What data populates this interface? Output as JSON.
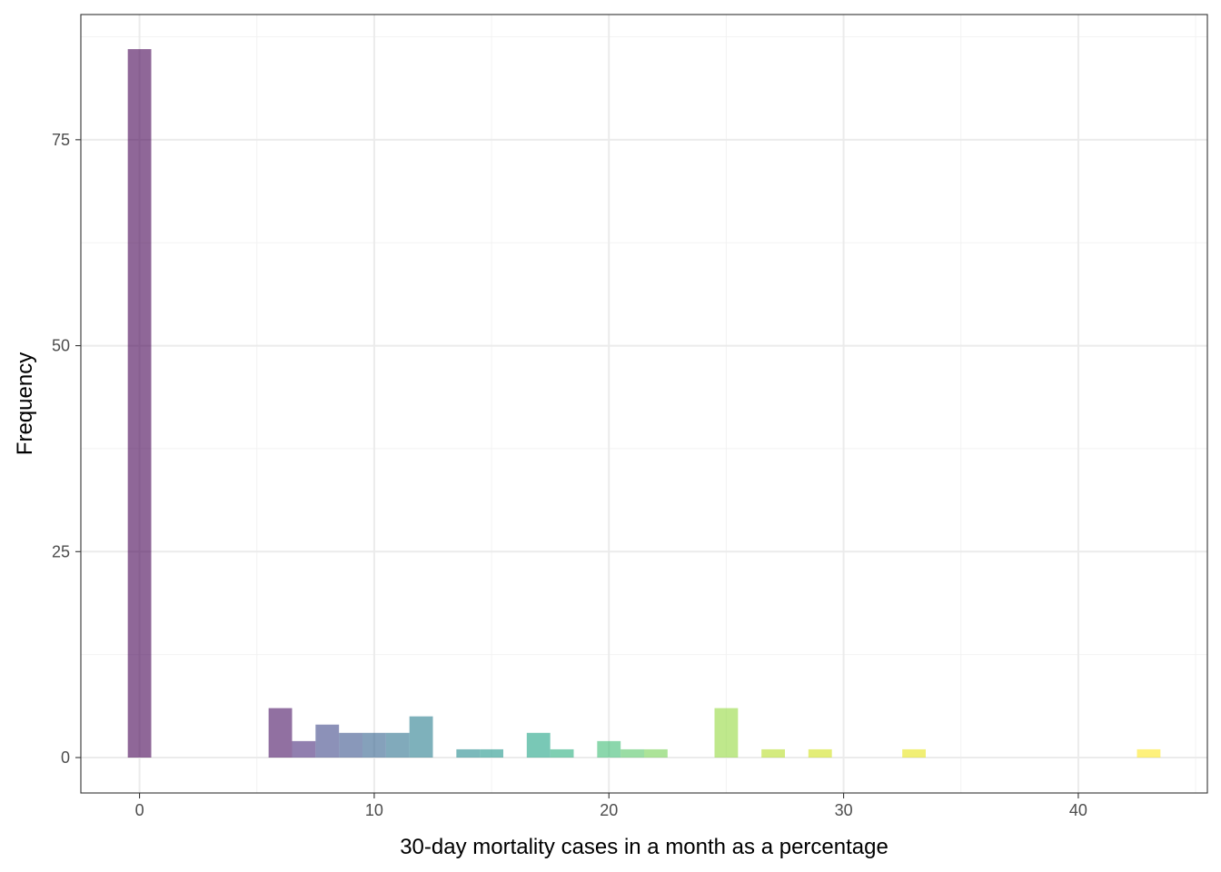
{
  "chart_data": {
    "type": "bar",
    "xlabel": "30-day mortality cases in a month as a percentage",
    "ylabel": "Frequency",
    "xlim": [
      -2.5,
      45.5
    ],
    "ylim": [
      -4.3,
      90.2
    ],
    "x_ticks": [
      0,
      10,
      20,
      30,
      40
    ],
    "y_ticks": [
      0,
      25,
      50,
      75
    ],
    "bin_width": 1,
    "grid": true,
    "legend": "none",
    "color_scale": "viridis",
    "bins": [
      {
        "x": 0,
        "count": 86,
        "color": "#440154"
      },
      {
        "x": 6,
        "count": 6,
        "color": "#471063"
      },
      {
        "x": 7,
        "count": 2,
        "color": "#472a7a"
      },
      {
        "x": 8,
        "count": 4,
        "color": "#3f4788"
      },
      {
        "x": 9,
        "count": 3,
        "color": "#3a548c"
      },
      {
        "x": 10,
        "count": 3,
        "color": "#33638d"
      },
      {
        "x": 11,
        "count": 3,
        "color": "#2d718e"
      },
      {
        "x": 12,
        "count": 5,
        "color": "#287d8e"
      },
      {
        "x": 14,
        "count": 1,
        "color": "#238a8d"
      },
      {
        "x": 15,
        "count": 1,
        "color": "#1f968b"
      },
      {
        "x": 17,
        "count": 3,
        "color": "#20a386"
      },
      {
        "x": 18,
        "count": 1,
        "color": "#29af7f"
      },
      {
        "x": 20,
        "count": 2,
        "color": "#3dbc74"
      },
      {
        "x": 21,
        "count": 1,
        "color": "#56c667"
      },
      {
        "x": 22,
        "count": 1,
        "color": "#75d054"
      },
      {
        "x": 25,
        "count": 6,
        "color": "#95d840"
      },
      {
        "x": 27,
        "count": 1,
        "color": "#b8de29"
      },
      {
        "x": 29,
        "count": 1,
        "color": "#d0e11c"
      },
      {
        "x": 33,
        "count": 1,
        "color": "#e8e419"
      },
      {
        "x": 43,
        "count": 1,
        "color": "#fde725"
      }
    ]
  },
  "colors": {
    "panel_border": "#333333",
    "grid_major": "#ebebeb",
    "grid_minor": "#f2f2f2",
    "bar_alpha": 0.6
  }
}
